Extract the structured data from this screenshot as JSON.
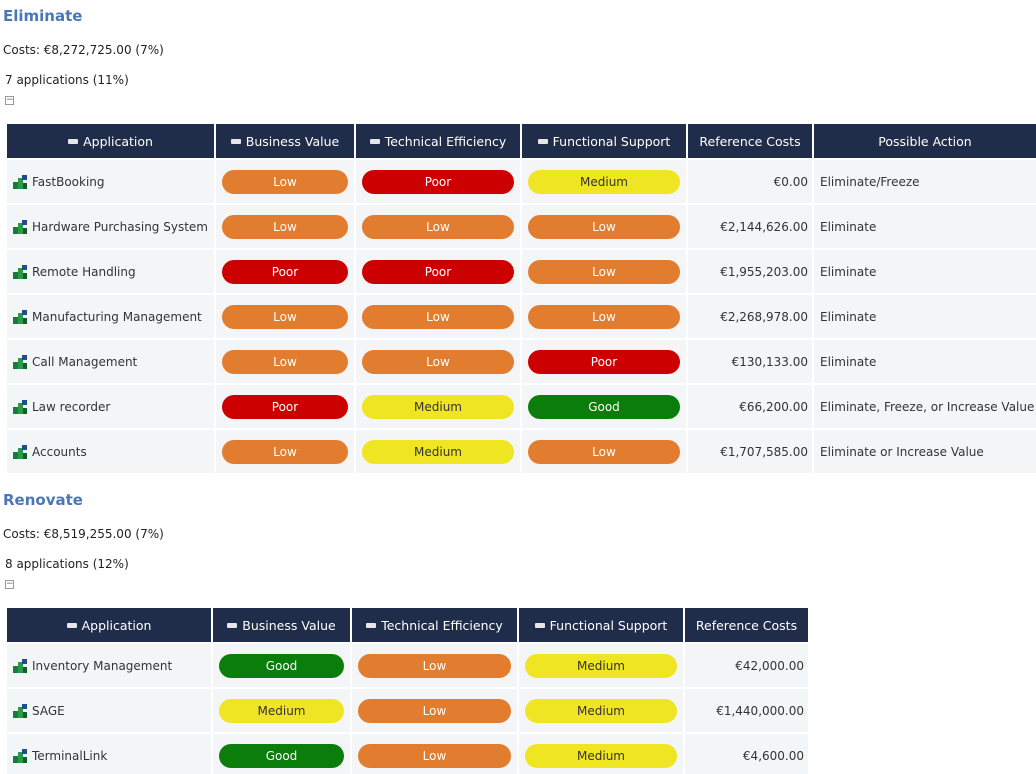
{
  "sections": [
    {
      "title": "Eliminate",
      "costs": "Costs: €8,272,725.00 (7%)",
      "applications": "7 applications (11%)",
      "columns": [
        "Application",
        "Business Value",
        "Technical Efficiency",
        "Functional Support",
        "Reference Costs",
        "Possible Action"
      ],
      "rows": [
        [
          "FastBooking",
          {
            "label": "Low",
            "color": "#e27c2f"
          },
          {
            "label": "Poor",
            "color": "#cc0000"
          },
          {
            "label": "Medium",
            "color": "#efe522"
          },
          "€0.00",
          "Eliminate/Freeze"
        ],
        [
          "Hardware Purchasing System",
          {
            "label": "Low",
            "color": "#e27c2f"
          },
          {
            "label": "Low",
            "color": "#e27c2f"
          },
          {
            "label": "Low",
            "color": "#e27c2f"
          },
          "€2,144,626.00",
          "Eliminate"
        ],
        [
          "Remote Handling",
          {
            "label": "Poor",
            "color": "#cc0000"
          },
          {
            "label": "Poor",
            "color": "#cc0000"
          },
          {
            "label": "Low",
            "color": "#e27c2f"
          },
          "€1,955,203.00",
          "Eliminate"
        ],
        [
          "Manufacturing Management",
          {
            "label": "Low",
            "color": "#e27c2f"
          },
          {
            "label": "Low",
            "color": "#e27c2f"
          },
          {
            "label": "Low",
            "color": "#e27c2f"
          },
          "€2,268,978.00",
          "Eliminate"
        ],
        [
          "Call Management",
          {
            "label": "Low",
            "color": "#e27c2f"
          },
          {
            "label": "Low",
            "color": "#e27c2f"
          },
          {
            "label": "Poor",
            "color": "#cc0000"
          },
          "€130,133.00",
          "Eliminate"
        ],
        [
          "Law recorder",
          {
            "label": "Poor",
            "color": "#cc0000"
          },
          {
            "label": "Medium",
            "color": "#efe522"
          },
          {
            "label": "Good",
            "color": "#0b7d0b"
          },
          "€66,200.00",
          "Eliminate, Freeze, or Increase Value"
        ],
        [
          "Accounts",
          {
            "label": "Low",
            "color": "#e27c2f"
          },
          {
            "label": "Medium",
            "color": "#efe522"
          },
          {
            "label": "Low",
            "color": "#e27c2f"
          },
          "€1,707,585.00",
          "Eliminate or Increase Value"
        ]
      ]
    },
    {
      "title": "Renovate",
      "costs": "Costs: €8,519,255.00 (7%)",
      "applications": "8 applications (12%)",
      "columns": [
        "Application",
        "Business Value",
        "Technical Efficiency",
        "Functional Support",
        "Reference Costs"
      ],
      "rows": [
        [
          "Inventory Management",
          {
            "label": "Good",
            "color": "#0b7d0b"
          },
          {
            "label": "Low",
            "color": "#e27c2f"
          },
          {
            "label": "Medium",
            "color": "#efe522"
          },
          "€42,000.00"
        ],
        [
          "SAGE",
          {
            "label": "Medium",
            "color": "#efe522"
          },
          {
            "label": "Low",
            "color": "#e27c2f"
          },
          {
            "label": "Medium",
            "color": "#efe522"
          },
          "€1,440,000.00"
        ],
        [
          "TerminalLink",
          {
            "label": "Good",
            "color": "#0b7d0b"
          },
          {
            "label": "Low",
            "color": "#e27c2f"
          },
          {
            "label": "Medium",
            "color": "#efe522"
          },
          "€4,600.00"
        ]
      ]
    }
  ]
}
